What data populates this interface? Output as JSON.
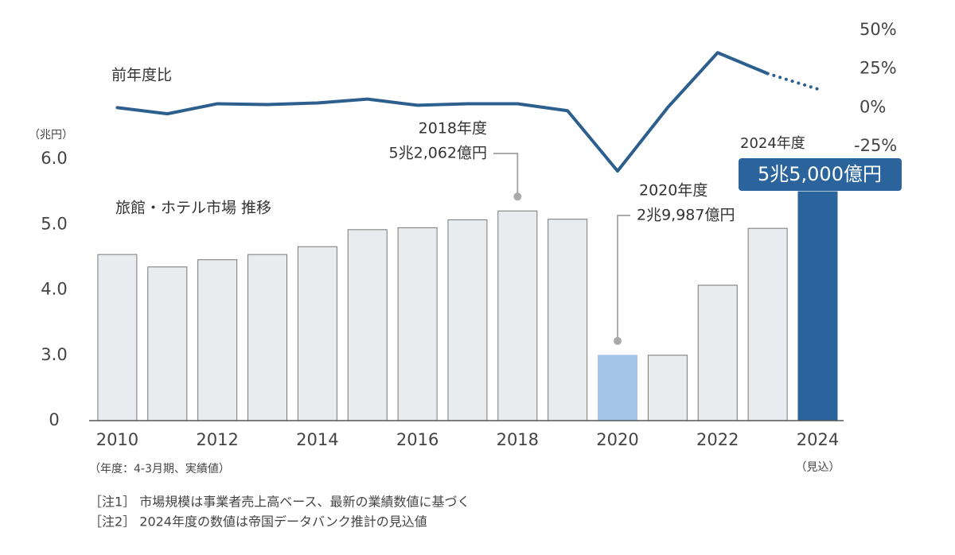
{
  "chart_data": {
    "type": "bar",
    "unit_label": "（兆円）",
    "categories": [
      "2010",
      null,
      "2012",
      null,
      "2014",
      null,
      "2016",
      null,
      "2018",
      null,
      "2020",
      null,
      "2022",
      null,
      "2024"
    ],
    "category_notes": [
      null,
      null,
      null,
      null,
      null,
      null,
      null,
      null,
      null,
      null,
      null,
      null,
      null,
      null,
      "（見込）"
    ],
    "x_note": "（年度：4-3月期、実績値）",
    "ylim": [
      0,
      6.0
    ],
    "yticks": [
      {
        "value": 0,
        "label": "0"
      },
      {
        "value": 3.0,
        "label": "3.0"
      },
      {
        "value": 4.0,
        "label": "4.0"
      },
      {
        "value": 5.0,
        "label": "5.0"
      },
      {
        "value": 6.0,
        "label": "6.0"
      }
    ],
    "broken_axis": true,
    "y2lim": [
      -45,
      50
    ],
    "y2ticks": [
      {
        "value": 50,
        "label": "50%"
      },
      {
        "value": 25,
        "label": "25%"
      },
      {
        "value": 0,
        "label": "0%"
      },
      {
        "value": -25,
        "label": "-25%"
      }
    ],
    "series": [
      {
        "name": "旅館・ホテル市場 推移",
        "type": "bar",
        "values": [
          4.54,
          4.35,
          4.46,
          4.54,
          4.66,
          4.92,
          4.95,
          5.07,
          5.2062,
          5.08,
          2.9987,
          3.0,
          4.07,
          4.94,
          5.5
        ],
        "colors": [
          "#e9ecee",
          "#e9ecee",
          "#e9ecee",
          "#e9ecee",
          "#e9ecee",
          "#e9ecee",
          "#e9ecee",
          "#e9ecee",
          "#e9ecee",
          "#e9ecee",
          "#a4c5e8",
          "#e9ecee",
          "#e9ecee",
          "#e9ecee",
          "#2b649c"
        ],
        "label_titles": [
          null,
          null,
          null,
          null,
          null,
          null,
          null,
          null,
          "2018年度",
          null,
          "2020年度",
          null,
          null,
          null,
          "2024年度"
        ],
        "value_labels": [
          null,
          null,
          null,
          null,
          null,
          null,
          null,
          null,
          "5兆2,062億円",
          null,
          "2兆9,987億円",
          null,
          null,
          null,
          "5兆5,000億円"
        ]
      },
      {
        "name": "前年度比",
        "type": "line",
        "axis": "y2",
        "color": "#2d5f8e",
        "dotted_last_segments": 1,
        "values": [
          0,
          -4,
          2.5,
          2,
          3,
          5.5,
          1.5,
          2.5,
          2.5,
          -2,
          -41,
          0,
          35.5,
          22,
          12
        ]
      }
    ],
    "notes": [
      "［注1］ 市場規模は事業者売上高ベース、最新の業績数値に基づく",
      "［注2］ 2024年度の数値は帝国データバンク推計の見込値"
    ]
  }
}
